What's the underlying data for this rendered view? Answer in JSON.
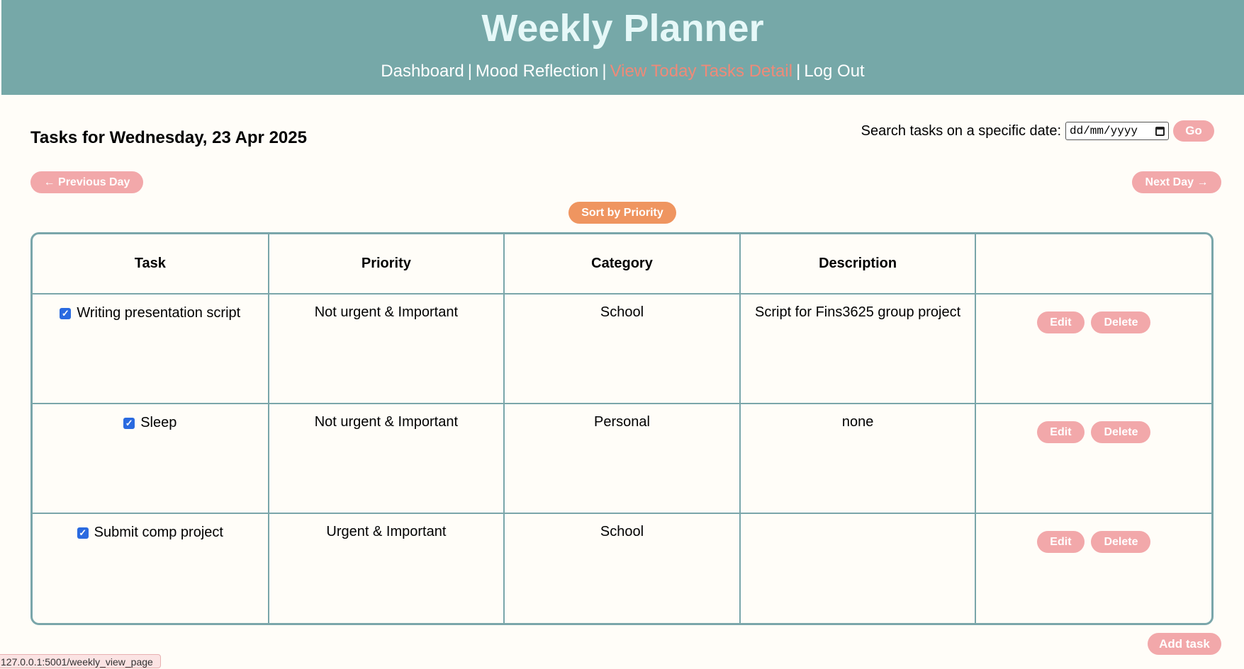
{
  "header": {
    "title": "Weekly Planner",
    "nav": [
      {
        "label": "Dashboard",
        "active": false
      },
      {
        "label": "Mood Reflection",
        "active": false
      },
      {
        "label": "View Today Tasks Detail",
        "active": true
      },
      {
        "label": "Log Out",
        "active": false
      }
    ],
    "separator": "|"
  },
  "main": {
    "heading": "Tasks for Wednesday, 23 Apr 2025",
    "search": {
      "label": "Search tasks on a specific date:",
      "placeholder": "dd/mm/yyyy",
      "go_label": "Go"
    },
    "prev_day_label": "← Previous Day",
    "next_day_label": "Next Day →",
    "sort_label": "Sort by Priority",
    "add_task_label": "Add task"
  },
  "table": {
    "columns": [
      "Task",
      "Priority",
      "Category",
      "Description",
      ""
    ],
    "rows": [
      {
        "task": "Writing presentation script",
        "done": true,
        "priority": "Not urgent & Important",
        "category": "School",
        "description": "Script for Fins3625 group project"
      },
      {
        "task": "Sleep",
        "done": true,
        "priority": "Not urgent & Important",
        "category": "Personal",
        "description": "none"
      },
      {
        "task": "Submit comp project",
        "done": true,
        "priority": "Urgent & Important",
        "category": "School",
        "description": ""
      }
    ],
    "edit_label": "Edit",
    "delete_label": "Delete"
  },
  "status_bar": {
    "url": "127.0.0.1:5001/weekly_view_page"
  },
  "colors": {
    "header_bg": "#76a8a8",
    "accent_pink": "#f2a8aa",
    "accent_orange": "#ef9560",
    "active_link": "#f08a78",
    "table_border": "#7aa6aa",
    "page_bg": "#fffdf8"
  }
}
